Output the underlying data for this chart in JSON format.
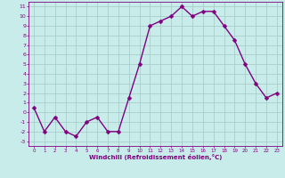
{
  "x": [
    0,
    1,
    2,
    3,
    4,
    5,
    6,
    7,
    8,
    9,
    10,
    11,
    12,
    13,
    14,
    15,
    16,
    17,
    18,
    19,
    20,
    21,
    22,
    23
  ],
  "y": [
    0.5,
    -2,
    -0.5,
    -2,
    -2.5,
    -1,
    -0.5,
    -2,
    -2,
    1.5,
    5,
    9,
    9.5,
    10,
    11,
    10,
    10.5,
    10.5,
    9,
    7.5,
    5,
    3,
    1.5,
    2
  ],
  "line_color": "#800080",
  "marker_color": "#800080",
  "bg_color": "#c8ecea",
  "grid_color": "#a8ceca",
  "xlabel": "Windchill (Refroidissement éolien,°C)",
  "xlabel_color": "#800080",
  "ylim": [
    -3.5,
    11.5
  ],
  "xlim": [
    -0.5,
    23.5
  ],
  "yticks": [
    -3,
    -2,
    -1,
    0,
    1,
    2,
    3,
    4,
    5,
    6,
    7,
    8,
    9,
    10,
    11
  ],
  "xticks": [
    0,
    1,
    2,
    3,
    4,
    5,
    6,
    7,
    8,
    9,
    10,
    11,
    12,
    13,
    14,
    15,
    16,
    17,
    18,
    19,
    20,
    21,
    22,
    23
  ],
  "tick_color": "#800080",
  "axis_color": "#800080",
  "line_width": 1.0,
  "marker_size": 2.5
}
